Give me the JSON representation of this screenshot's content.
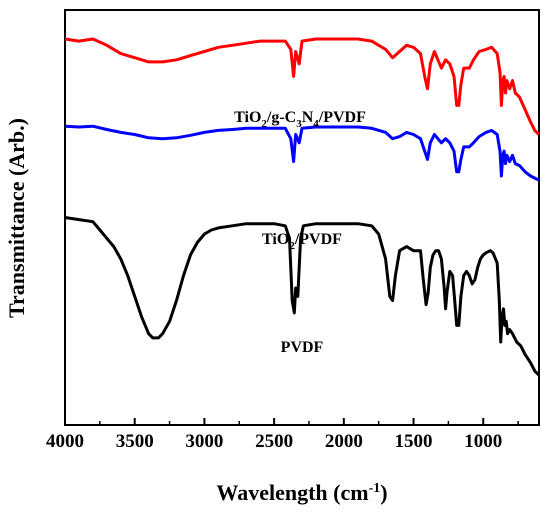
{
  "chart_data": {
    "type": "line",
    "title": "",
    "xlabel": "Wavelength (cm",
    "xlabel_sup": "-1",
    "xlabel_close": ")",
    "ylabel": "Transmittance (Arb.)",
    "xlim": [
      4000,
      600
    ],
    "x_reversed": true,
    "xticks": [
      "4000",
      "3500",
      "3000",
      "2500",
      "2000",
      "1500",
      "1000"
    ],
    "yticks": [],
    "grid": false,
    "legend": "none",
    "annotations": [
      {
        "parts": [
          [
            "TiO",
            ""
          ],
          [
            "2",
            "sub"
          ],
          [
            "/g-C",
            ""
          ],
          [
            "3",
            "sub"
          ],
          [
            "N",
            ""
          ],
          [
            "4",
            "sub"
          ],
          [
            "/PVDF",
            ""
          ]
        ],
        "series": 0
      },
      {
        "parts": [
          [
            "TiO",
            ""
          ],
          [
            "2",
            "sub"
          ],
          [
            "/PVDF",
            ""
          ]
        ],
        "series": 1
      },
      {
        "parts": [
          [
            "PVDF",
            ""
          ]
        ],
        "series": 2
      }
    ],
    "series": [
      {
        "color": "#ff0000",
        "points": [
          [
            4000,
            0.93
          ],
          [
            3900,
            0.925
          ],
          [
            3800,
            0.93
          ],
          [
            3700,
            0.915
          ],
          [
            3600,
            0.895
          ],
          [
            3500,
            0.885
          ],
          [
            3400,
            0.875
          ],
          [
            3300,
            0.875
          ],
          [
            3200,
            0.88
          ],
          [
            3100,
            0.89
          ],
          [
            3000,
            0.9
          ],
          [
            2900,
            0.91
          ],
          [
            2800,
            0.915
          ],
          [
            2700,
            0.92
          ],
          [
            2600,
            0.925
          ],
          [
            2500,
            0.925
          ],
          [
            2420,
            0.925
          ],
          [
            2380,
            0.905
          ],
          [
            2360,
            0.84
          ],
          [
            2345,
            0.9
          ],
          [
            2320,
            0.87
          ],
          [
            2300,
            0.925
          ],
          [
            2200,
            0.93
          ],
          [
            2100,
            0.93
          ],
          [
            2000,
            0.93
          ],
          [
            1900,
            0.93
          ],
          [
            1800,
            0.925
          ],
          [
            1700,
            0.905
          ],
          [
            1650,
            0.885
          ],
          [
            1600,
            0.9
          ],
          [
            1550,
            0.915
          ],
          [
            1500,
            0.91
          ],
          [
            1450,
            0.895
          ],
          [
            1420,
            0.84
          ],
          [
            1400,
            0.81
          ],
          [
            1380,
            0.87
          ],
          [
            1350,
            0.9
          ],
          [
            1300,
            0.86
          ],
          [
            1270,
            0.88
          ],
          [
            1240,
            0.87
          ],
          [
            1210,
            0.84
          ],
          [
            1190,
            0.77
          ],
          [
            1175,
            0.77
          ],
          [
            1160,
            0.82
          ],
          [
            1140,
            0.86
          ],
          [
            1100,
            0.86
          ],
          [
            1070,
            0.88
          ],
          [
            1030,
            0.9
          ],
          [
            980,
            0.905
          ],
          [
            940,
            0.91
          ],
          [
            900,
            0.895
          ],
          [
            880,
            0.85
          ],
          [
            870,
            0.77
          ],
          [
            860,
            0.83
          ],
          [
            850,
            0.84
          ],
          [
            840,
            0.8
          ],
          [
            830,
            0.83
          ],
          [
            810,
            0.81
          ],
          [
            790,
            0.83
          ],
          [
            770,
            0.8
          ],
          [
            740,
            0.79
          ],
          [
            700,
            0.76
          ],
          [
            660,
            0.73
          ],
          [
            630,
            0.71
          ],
          [
            600,
            0.7
          ]
        ]
      },
      {
        "color": "#0000ff",
        "points": [
          [
            4000,
            0.72
          ],
          [
            3900,
            0.718
          ],
          [
            3800,
            0.72
          ],
          [
            3700,
            0.712
          ],
          [
            3600,
            0.705
          ],
          [
            3500,
            0.7
          ],
          [
            3400,
            0.692
          ],
          [
            3300,
            0.69
          ],
          [
            3200,
            0.692
          ],
          [
            3100,
            0.698
          ],
          [
            3000,
            0.705
          ],
          [
            2900,
            0.71
          ],
          [
            2800,
            0.712
          ],
          [
            2700,
            0.715
          ],
          [
            2600,
            0.715
          ],
          [
            2500,
            0.715
          ],
          [
            2420,
            0.715
          ],
          [
            2380,
            0.69
          ],
          [
            2360,
            0.635
          ],
          [
            2345,
            0.7
          ],
          [
            2320,
            0.68
          ],
          [
            2300,
            0.715
          ],
          [
            2200,
            0.718
          ],
          [
            2100,
            0.718
          ],
          [
            2000,
            0.718
          ],
          [
            1900,
            0.718
          ],
          [
            1800,
            0.715
          ],
          [
            1700,
            0.705
          ],
          [
            1650,
            0.69
          ],
          [
            1600,
            0.695
          ],
          [
            1550,
            0.705
          ],
          [
            1500,
            0.7
          ],
          [
            1450,
            0.69
          ],
          [
            1420,
            0.66
          ],
          [
            1400,
            0.64
          ],
          [
            1380,
            0.68
          ],
          [
            1350,
            0.7
          ],
          [
            1300,
            0.68
          ],
          [
            1270,
            0.69
          ],
          [
            1240,
            0.68
          ],
          [
            1210,
            0.66
          ],
          [
            1190,
            0.61
          ],
          [
            1175,
            0.61
          ],
          [
            1160,
            0.64
          ],
          [
            1140,
            0.67
          ],
          [
            1100,
            0.67
          ],
          [
            1070,
            0.68
          ],
          [
            1030,
            0.695
          ],
          [
            980,
            0.705
          ],
          [
            940,
            0.71
          ],
          [
            900,
            0.7
          ],
          [
            880,
            0.66
          ],
          [
            870,
            0.6
          ],
          [
            860,
            0.65
          ],
          [
            850,
            0.66
          ],
          [
            840,
            0.63
          ],
          [
            830,
            0.65
          ],
          [
            810,
            0.635
          ],
          [
            790,
            0.65
          ],
          [
            770,
            0.63
          ],
          [
            740,
            0.625
          ],
          [
            700,
            0.61
          ],
          [
            660,
            0.6
          ],
          [
            630,
            0.595
          ],
          [
            600,
            0.59
          ]
        ]
      },
      {
        "color": "#000000",
        "points": [
          [
            4000,
            0.5
          ],
          [
            3900,
            0.495
          ],
          [
            3800,
            0.49
          ],
          [
            3750,
            0.47
          ],
          [
            3700,
            0.45
          ],
          [
            3650,
            0.43
          ],
          [
            3600,
            0.4
          ],
          [
            3550,
            0.36
          ],
          [
            3500,
            0.31
          ],
          [
            3450,
            0.26
          ],
          [
            3400,
            0.22
          ],
          [
            3370,
            0.21
          ],
          [
            3330,
            0.21
          ],
          [
            3300,
            0.22
          ],
          [
            3250,
            0.25
          ],
          [
            3200,
            0.3
          ],
          [
            3150,
            0.36
          ],
          [
            3100,
            0.41
          ],
          [
            3050,
            0.44
          ],
          [
            3000,
            0.46
          ],
          [
            2950,
            0.47
          ],
          [
            2900,
            0.475
          ],
          [
            2800,
            0.48
          ],
          [
            2700,
            0.485
          ],
          [
            2600,
            0.485
          ],
          [
            2500,
            0.485
          ],
          [
            2420,
            0.48
          ],
          [
            2390,
            0.45
          ],
          [
            2370,
            0.3
          ],
          [
            2355,
            0.27
          ],
          [
            2345,
            0.33
          ],
          [
            2330,
            0.31
          ],
          [
            2310,
            0.45
          ],
          [
            2290,
            0.48
          ],
          [
            2200,
            0.485
          ],
          [
            2100,
            0.485
          ],
          [
            2000,
            0.485
          ],
          [
            1900,
            0.485
          ],
          [
            1800,
            0.48
          ],
          [
            1750,
            0.46
          ],
          [
            1700,
            0.4
          ],
          [
            1670,
            0.31
          ],
          [
            1650,
            0.3
          ],
          [
            1630,
            0.36
          ],
          [
            1600,
            0.42
          ],
          [
            1550,
            0.43
          ],
          [
            1500,
            0.42
          ],
          [
            1470,
            0.42
          ],
          [
            1450,
            0.42
          ],
          [
            1430,
            0.35
          ],
          [
            1410,
            0.29
          ],
          [
            1395,
            0.32
          ],
          [
            1380,
            0.38
          ],
          [
            1360,
            0.41
          ],
          [
            1340,
            0.42
          ],
          [
            1320,
            0.42
          ],
          [
            1300,
            0.4
          ],
          [
            1280,
            0.33
          ],
          [
            1270,
            0.28
          ],
          [
            1260,
            0.32
          ],
          [
            1240,
            0.37
          ],
          [
            1220,
            0.36
          ],
          [
            1205,
            0.3
          ],
          [
            1190,
            0.24
          ],
          [
            1175,
            0.24
          ],
          [
            1160,
            0.31
          ],
          [
            1140,
            0.36
          ],
          [
            1120,
            0.37
          ],
          [
            1100,
            0.36
          ],
          [
            1080,
            0.34
          ],
          [
            1060,
            0.35
          ],
          [
            1040,
            0.38
          ],
          [
            1020,
            0.4
          ],
          [
            1000,
            0.41
          ],
          [
            980,
            0.415
          ],
          [
            950,
            0.42
          ],
          [
            930,
            0.415
          ],
          [
            900,
            0.39
          ],
          [
            885,
            0.3
          ],
          [
            875,
            0.2
          ],
          [
            865,
            0.26
          ],
          [
            855,
            0.28
          ],
          [
            845,
            0.24
          ],
          [
            835,
            0.25
          ],
          [
            825,
            0.22
          ],
          [
            810,
            0.23
          ],
          [
            790,
            0.22
          ],
          [
            760,
            0.2
          ],
          [
            730,
            0.19
          ],
          [
            700,
            0.17
          ],
          [
            660,
            0.15
          ],
          [
            630,
            0.13
          ],
          [
            600,
            0.12
          ]
        ]
      }
    ]
  }
}
